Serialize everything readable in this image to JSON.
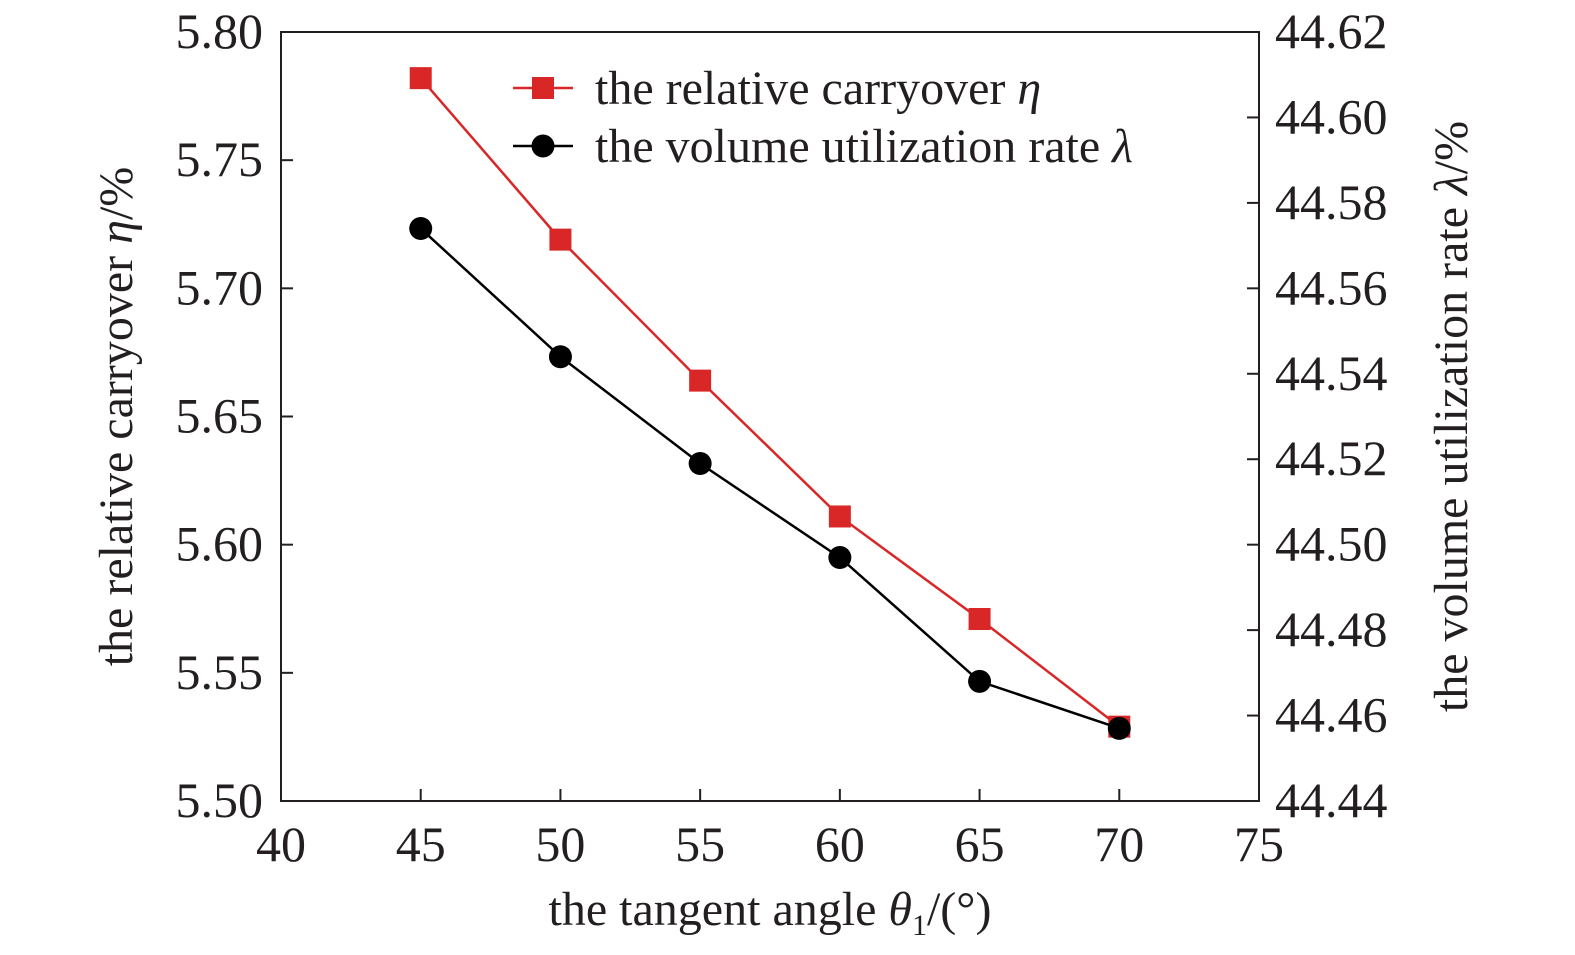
{
  "chart_data": {
    "type": "line",
    "x": [
      45,
      50,
      55,
      60,
      65,
      70
    ],
    "xlim": [
      40,
      75
    ],
    "x_ticks": [
      "40",
      "45",
      "50",
      "55",
      "60",
      "65",
      "70",
      "75"
    ],
    "xlabel": {
      "prefix": "the tangent angle ",
      "symbol": "θ",
      "subscript": "1",
      "suffix": "/(°)"
    },
    "left_axis": {
      "ylim": [
        5.5,
        5.8
      ],
      "ticks": [
        "5.50",
        "5.55",
        "5.60",
        "5.65",
        "5.70",
        "5.75",
        "5.80"
      ],
      "label": {
        "prefix": "the relative carryover ",
        "symbol": "η",
        "suffix": "/%"
      }
    },
    "right_axis": {
      "ylim": [
        44.44,
        44.62
      ],
      "ticks": [
        "44.44",
        "44.46",
        "44.48",
        "44.50",
        "44.52",
        "44.54",
        "44.56",
        "44.58",
        "44.60",
        "44.62"
      ],
      "label": {
        "prefix": "the volume utilization rate ",
        "symbol": "λ",
        "suffix": "/%"
      }
    },
    "series": [
      {
        "name": "the relative carryover η",
        "legend_prefix": "the relative carryover ",
        "legend_symbol": "η",
        "axis": "left",
        "marker": "square",
        "color": "#d92727",
        "values": [
          5.782,
          5.719,
          5.664,
          5.611,
          5.571,
          5.529
        ]
      },
      {
        "name": "the volume utilization rate λ",
        "legend_prefix": "the volume utilization rate ",
        "legend_symbol": "λ",
        "axis": "right",
        "marker": "circle",
        "color": "#000000",
        "values": [
          44.574,
          44.544,
          44.519,
          44.497,
          44.468,
          44.457
        ]
      }
    ],
    "legend_position": "top-right",
    "grid": false
  }
}
